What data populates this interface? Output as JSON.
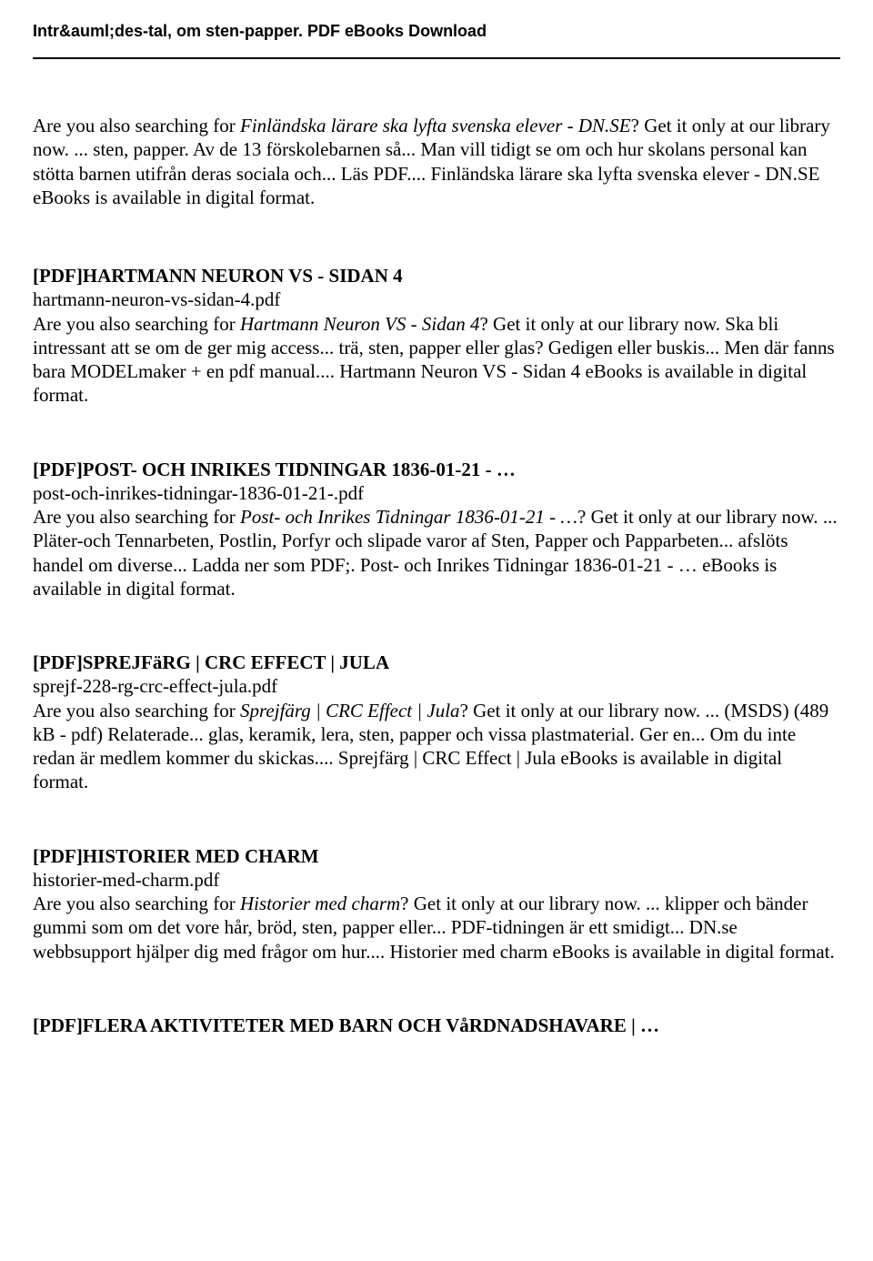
{
  "header": {
    "title": "Intr&auml;des-tal, om sten-papper. PDF eBooks Download"
  },
  "intro": {
    "prefix": "Are you also searching for ",
    "italic": "Finländska lärare ska lyfta svenska elever - DN.SE",
    "suffix": "? Get it only at our library now. ... sten, papper. Av de 13 förskolebarnen så... Man vill tidigt se om och hur skolans personal kan stötta barnen utifrån deras sociala och... Läs PDF.... Finländska lärare ska lyfta svenska elever - DN.SE eBooks is available in digital format."
  },
  "entries": [
    {
      "title": "[PDF]HARTMANN NEURON VS - SIDAN 4",
      "filename": "hartmann-neuron-vs-sidan-4.pdf",
      "body_prefix": "Are you also searching for ",
      "body_italic": "Hartmann Neuron VS - Sidan 4",
      "body_suffix": "? Get it only at our library now. Ska bli intressant att se om de ger mig access... trä, sten, papper eller glas? Gedigen eller buskis... Men där fanns bara MODELmaker + en pdf manual.... Hartmann Neuron VS - Sidan 4 eBooks is available in digital format."
    },
    {
      "title": "[PDF]POST- OCH INRIKES TIDNINGAR 1836-01-21 - …",
      "filename": "post-och-inrikes-tidningar-1836-01-21-.pdf",
      "body_prefix": "Are you also searching for ",
      "body_italic": "Post- och Inrikes Tidningar 1836-01-21 - …",
      "body_suffix": "? Get it only at our library now. ... Pläter-och Tennarbeten, Postlin, Porfyr och slipade varor af Sten, Papper och Papparbeten... afslöts handel om diverse... Ladda ner som PDF;. Post- och Inrikes Tidningar 1836-01-21 - … eBooks is available in digital format."
    },
    {
      "title": "[PDF]SPREJFäRG | CRC EFFECT | JULA",
      "filename": "sprejf-228-rg-crc-effect-jula.pdf",
      "body_prefix": "Are you also searching for ",
      "body_italic": "Sprejfärg | CRC Effect | Jula",
      "body_suffix": "? Get it only at our library now. ... (MSDS) (489 kB - pdf) Relaterade... glas, keramik, lera, sten, papper och vissa plastmaterial. Ger en... Om du inte redan är medlem kommer du skickas.... Sprejfärg | CRC Effect | Jula eBooks is available in digital format."
    },
    {
      "title": "[PDF]HISTORIER MED CHARM",
      "filename": "historier-med-charm.pdf",
      "body_prefix": "Are you also searching for ",
      "body_italic": "Historier med charm",
      "body_suffix": "? Get it only at our library now. ... klipper och bänder gummi som om det vore hår, bröd, sten, papper eller... PDF-tidningen är ett smidigt... DN.se webbsupport hjälper dig med frågor om hur.... Historier med charm eBooks is available in digital format."
    }
  ],
  "last_title": "[PDF]FLERA AKTIVITETER MED BARN OCH VåRDNADSHAVARE | …"
}
